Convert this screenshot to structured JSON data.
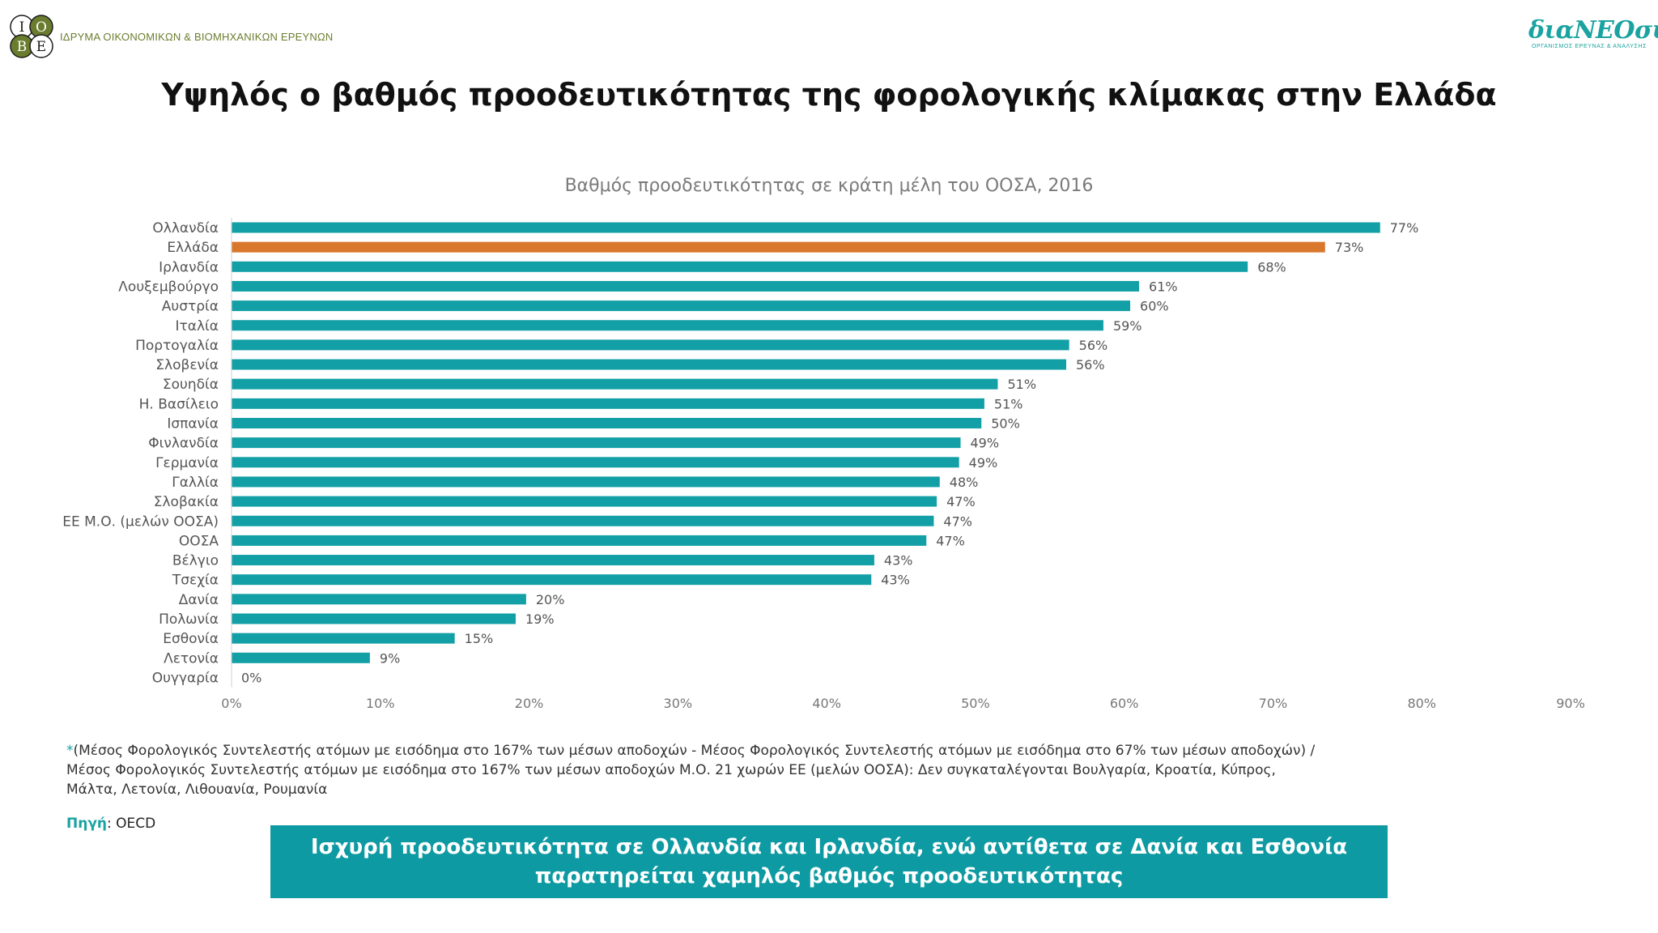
{
  "header": {
    "iobe_logo_letters": [
      "Ι",
      "Ο",
      "Β",
      "Ε"
    ],
    "iobe_name": "ΙΔΡΥΜΑ ΟΙΚΟΝΟΜΙΚΩΝ & ΒΙΟΜΗΧΑΝΙΚΩΝ ΕΡΕΥΝΩΝ",
    "dianeosis_name": "διαΝΕΟσις",
    "dianeosis_subtitle": "ΟΡΓΑΝΙΣΜΟΣ ΕΡΕΥΝΑΣ & ΑΝΑΛΥΣΗΣ"
  },
  "page_title": "Υψηλός ο βαθμός προοδευτικότητας της φορολογικής κλίμακας στην Ελλάδα",
  "colors": {
    "bar": "#12a0a6",
    "highlight": "#d9782d",
    "accent": "#1aa3a0",
    "banner": "#0e9aa2",
    "iobe_green": "#6a7d2e"
  },
  "chart_data": {
    "type": "bar",
    "orientation": "horizontal",
    "title": "Βαθμός προοδευτικότητας σε κράτη μέλη του ΟΟΣΑ, 2016",
    "categories": [
      "Ολλανδία",
      "Ελλάδα",
      "Ιρλανδία",
      "Λουξεμβούργο",
      "Αυστρία",
      "Ιταλία",
      "Πορτογαλία",
      "Σλοβενία",
      "Σουηδία",
      "Η. Βασίλειο",
      "Ισπανία",
      "Φινλανδία",
      "Γερμανία",
      "Γαλλία",
      "Σλοβακία",
      "ΕΕ Μ.Ο. (μελών ΟΟΣΑ)",
      "ΟΟΣΑ",
      "Βέλγιο",
      "Τσεχία",
      "Δανία",
      "Πολωνία",
      "Εσθονία",
      "Λετονία",
      "Ουγγαρία"
    ],
    "values": [
      77.2,
      73.5,
      68.3,
      61.0,
      60.4,
      58.6,
      56.3,
      56.1,
      51.5,
      50.6,
      50.4,
      49.0,
      48.9,
      47.6,
      47.4,
      47.2,
      46.7,
      43.2,
      43.0,
      19.8,
      19.1,
      15.0,
      9.3,
      0
    ],
    "value_labels": [
      "77%",
      "73%",
      "68%",
      "61%",
      "60%",
      "59%",
      "56%",
      "56%",
      "51%",
      "51%",
      "50%",
      "49%",
      "49%",
      "48%",
      "47%",
      "47%",
      "47%",
      "43%",
      "43%",
      "20%",
      "19%",
      "15%",
      "9%",
      "0%"
    ],
    "highlight_index": 1,
    "xlim": [
      0,
      90
    ],
    "xticks": [
      "0%",
      "10%",
      "20%",
      "30%",
      "40%",
      "50%",
      "60%",
      "70%",
      "80%",
      "90%"
    ],
    "xlabel": "",
    "ylabel": "",
    "grid": false,
    "legend": "none"
  },
  "footnote": {
    "star": "*",
    "text": "(Μέσος Φορολογικός Συντελεστής ατόμων με εισόδημα στο 167% των μέσων αποδοχών  - Μέσος Φορολογικός Συντελεστής ατόμων με εισόδημα στο 67% των μέσων αποδοχών) / Μέσος Φορολογικός Συντελεστής ατόμων με εισόδημα στο 167% των μέσων αποδοχών Μ.Ο. 21 χωρών ΕΕ (μελών ΟΟΣΑ): Δεν συγκαταλέγονται Βουλγαρία, Κροατία, Κύπρος, Μάλτα, Λετονία, Λιθουανία, Ρουμανία"
  },
  "source": {
    "label": "Πηγή",
    "value": ": OECD"
  },
  "banner_text": "Ισχυρή προοδευτικότητα σε Ολλανδία και Ιρλανδία, ενώ αντίθετα σε Δανία και Εσθονία παρατηρείται χαμηλός βαθμός προοδευτικότητας"
}
